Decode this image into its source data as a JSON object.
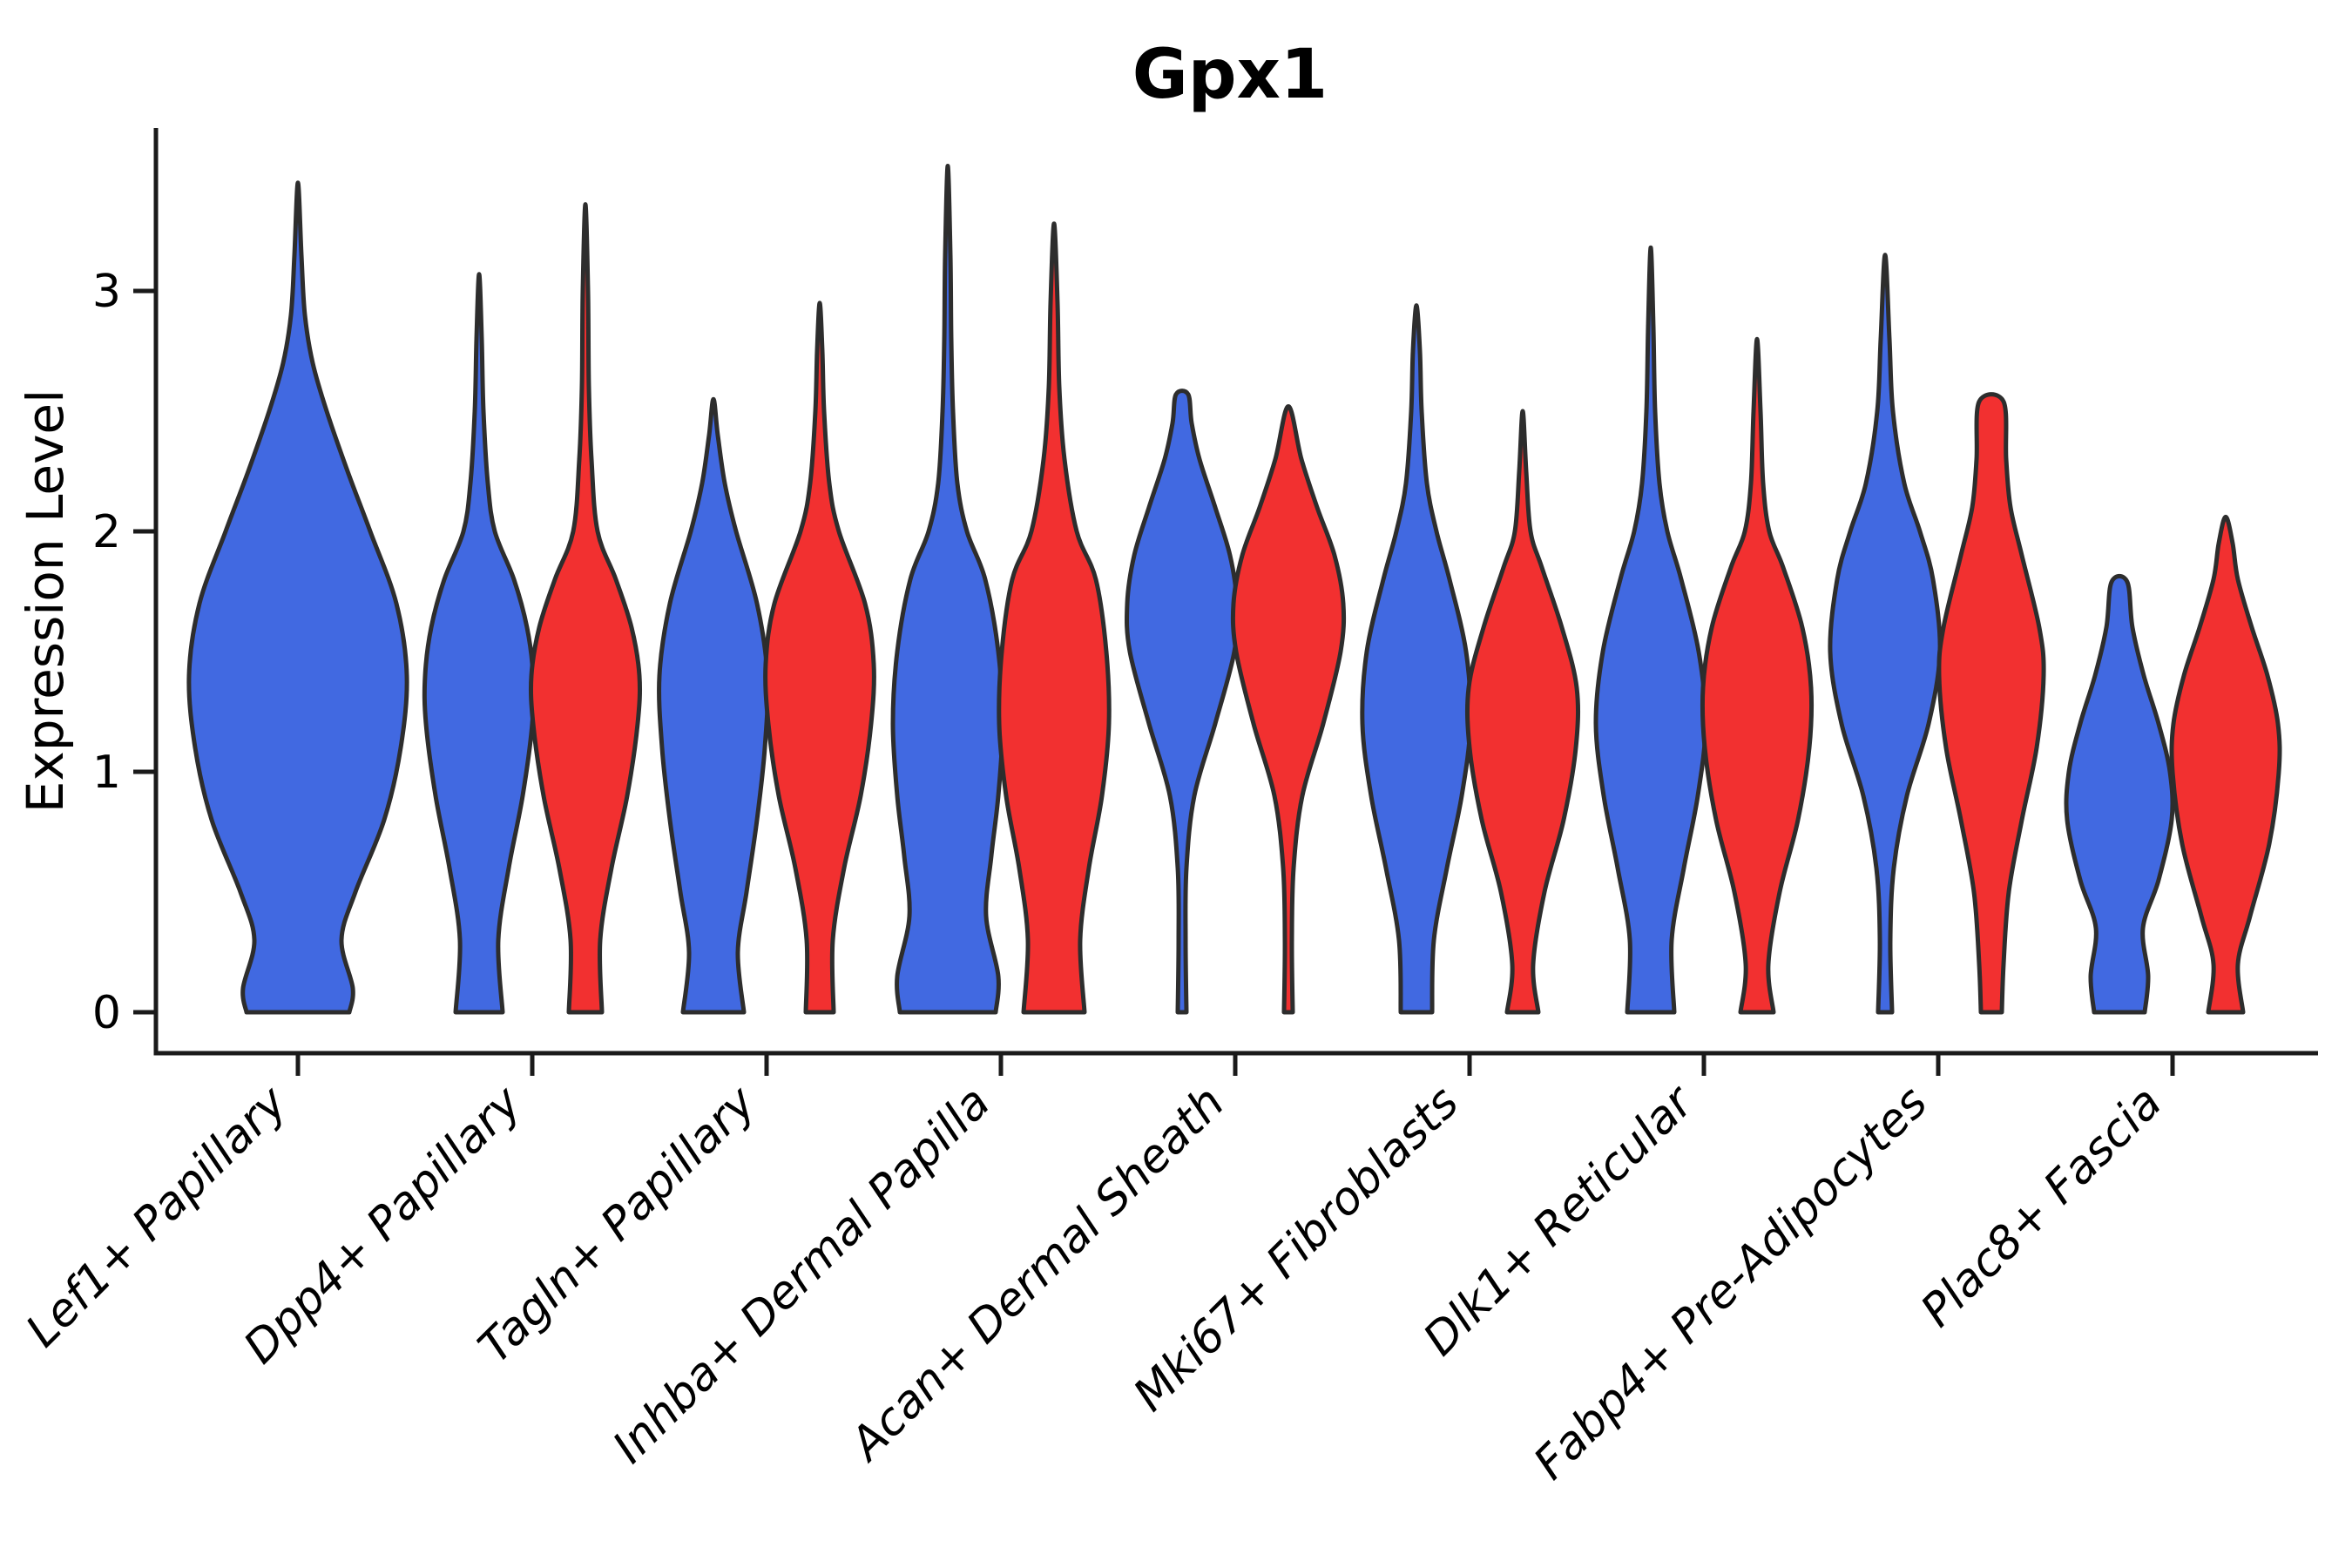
{
  "chart_data": {
    "type": "violin",
    "title": "Gpx1",
    "ylabel": "Expression Level",
    "xlabel": "",
    "grid": false,
    "legend": "none",
    "ylim": [
      -0.17,
      3.67
    ],
    "yticks": [
      {
        "value": 0,
        "label": "0"
      },
      {
        "value": 1,
        "label": "1"
      },
      {
        "value": 2,
        "label": "2"
      },
      {
        "value": 3,
        "label": "3"
      }
    ],
    "x_tick_rotation_deg": 45,
    "categories": [
      "Lef1+ Papillary",
      "Dpp4+ Papillary",
      "Tagln+ Papillary",
      "Inhba+ Dermal Papilla",
      "Acan+ Dermal Sheath",
      "Mki67+ Fibroblasts",
      "Dlk1+ Reticular",
      "Fabp4+ Pre-Adipocytes",
      "Plac8+ Fascia"
    ],
    "groups": [
      {
        "id": "blue",
        "color": "#4169E1"
      },
      {
        "id": "red",
        "color": "#F23030"
      }
    ],
    "edge_color": "#2D2D2D",
    "violins": [
      {
        "category_index": 0,
        "group": "blue",
        "max_expression": 3.45,
        "tip_style": "point",
        "profile": [
          [
            0,
            59
          ],
          [
            0.1,
            63
          ],
          [
            0.3,
            50
          ],
          [
            0.5,
            66
          ],
          [
            0.8,
            99
          ],
          [
            1.1,
            118
          ],
          [
            1.4,
            125
          ],
          [
            1.7,
            113
          ],
          [
            2.0,
            83
          ],
          [
            2.25,
            57
          ],
          [
            2.5,
            33
          ],
          [
            2.7,
            17
          ],
          [
            2.9,
            8
          ],
          [
            3.15,
            4
          ],
          [
            3.45,
            2
          ]
        ]
      },
      {
        "category_index": 1,
        "group": "blue",
        "max_expression": 3.07,
        "tip_style": "point",
        "profile": [
          [
            0,
            27
          ],
          [
            0.3,
            22
          ],
          [
            0.6,
            34
          ],
          [
            0.9,
            50
          ],
          [
            1.2,
            61
          ],
          [
            1.4,
            62
          ],
          [
            1.6,
            55
          ],
          [
            1.8,
            40
          ],
          [
            2.0,
            18
          ],
          [
            2.2,
            10
          ],
          [
            2.5,
            5
          ],
          [
            2.8,
            3
          ],
          [
            3.07,
            1.5
          ]
        ]
      },
      {
        "category_index": 1,
        "group": "red",
        "max_expression": 3.36,
        "tip_style": "point",
        "profile": [
          [
            0,
            19
          ],
          [
            0.3,
            17
          ],
          [
            0.6,
            30
          ],
          [
            0.9,
            48
          ],
          [
            1.2,
            60
          ],
          [
            1.4,
            62
          ],
          [
            1.6,
            53
          ],
          [
            1.8,
            35
          ],
          [
            2.0,
            14
          ],
          [
            2.3,
            7
          ],
          [
            2.6,
            4
          ],
          [
            3.0,
            3
          ],
          [
            3.36,
            1.5
          ]
        ]
      },
      {
        "category_index": 2,
        "group": "blue",
        "max_expression": 2.55,
        "tip_style": "point",
        "profile": [
          [
            0,
            35
          ],
          [
            0.25,
            28
          ],
          [
            0.5,
            38
          ],
          [
            0.8,
            50
          ],
          [
            1.1,
            59
          ],
          [
            1.4,
            62
          ],
          [
            1.7,
            50
          ],
          [
            2.0,
            26
          ],
          [
            2.2,
            13
          ],
          [
            2.4,
            5
          ],
          [
            2.55,
            2
          ]
        ]
      },
      {
        "category_index": 2,
        "group": "red",
        "max_expression": 2.95,
        "tip_style": "point",
        "profile": [
          [
            0,
            16
          ],
          [
            0.3,
            15
          ],
          [
            0.6,
            28
          ],
          [
            0.9,
            47
          ],
          [
            1.2,
            59
          ],
          [
            1.45,
            62
          ],
          [
            1.7,
            52
          ],
          [
            2.0,
            22
          ],
          [
            2.2,
            11
          ],
          [
            2.5,
            5
          ],
          [
            2.75,
            3
          ],
          [
            2.95,
            1.5
          ]
        ]
      },
      {
        "category_index": 3,
        "group": "blue",
        "max_expression": 3.52,
        "tip_style": "point",
        "profile": [
          [
            0,
            55
          ],
          [
            0.15,
            58
          ],
          [
            0.4,
            44
          ],
          [
            0.65,
            50
          ],
          [
            0.9,
            58
          ],
          [
            1.2,
            63
          ],
          [
            1.5,
            58
          ],
          [
            1.8,
            43
          ],
          [
            2.0,
            22
          ],
          [
            2.2,
            11
          ],
          [
            2.5,
            6
          ],
          [
            2.8,
            4
          ],
          [
            3.15,
            3
          ],
          [
            3.52,
            1.5
          ]
        ]
      },
      {
        "category_index": 3,
        "group": "red",
        "max_expression": 3.28,
        "tip_style": "point",
        "profile": [
          [
            0,
            35
          ],
          [
            0.3,
            30
          ],
          [
            0.6,
            40
          ],
          [
            0.9,
            55
          ],
          [
            1.2,
            63
          ],
          [
            1.5,
            60
          ],
          [
            1.8,
            48
          ],
          [
            2.0,
            26
          ],
          [
            2.3,
            12
          ],
          [
            2.6,
            6
          ],
          [
            2.95,
            4
          ],
          [
            3.28,
            1.5
          ]
        ]
      },
      {
        "category_index": 4,
        "group": "blue",
        "max_expression": 2.57,
        "tip_style": "blunt",
        "profile": [
          [
            0,
            5
          ],
          [
            0.3,
            4
          ],
          [
            0.6,
            5
          ],
          [
            0.9,
            14
          ],
          [
            1.2,
            38
          ],
          [
            1.5,
            60
          ],
          [
            1.7,
            63
          ],
          [
            1.9,
            55
          ],
          [
            2.1,
            38
          ],
          [
            2.3,
            20
          ],
          [
            2.45,
            11
          ],
          [
            2.57,
            7
          ]
        ]
      },
      {
        "category_index": 4,
        "group": "red",
        "max_expression": 2.52,
        "tip_style": "point",
        "profile": [
          [
            0,
            5
          ],
          [
            0.3,
            4
          ],
          [
            0.6,
            6
          ],
          [
            0.9,
            16
          ],
          [
            1.2,
            40
          ],
          [
            1.5,
            60
          ],
          [
            1.7,
            63
          ],
          [
            1.9,
            53
          ],
          [
            2.1,
            33
          ],
          [
            2.3,
            15
          ],
          [
            2.52,
            2
          ]
        ]
      },
      {
        "category_index": 5,
        "group": "blue",
        "max_expression": 2.94,
        "tip_style": "point",
        "profile": [
          [
            0,
            18
          ],
          [
            0.3,
            20
          ],
          [
            0.6,
            35
          ],
          [
            0.9,
            52
          ],
          [
            1.2,
            62
          ],
          [
            1.5,
            57
          ],
          [
            1.8,
            38
          ],
          [
            2.0,
            23
          ],
          [
            2.2,
            12
          ],
          [
            2.5,
            6
          ],
          [
            2.75,
            4
          ],
          [
            2.94,
            1.5
          ]
        ]
      },
      {
        "category_index": 5,
        "group": "red",
        "max_expression": 2.5,
        "tip_style": "point",
        "profile": [
          [
            0,
            18
          ],
          [
            0.2,
            12
          ],
          [
            0.5,
            25
          ],
          [
            0.8,
            47
          ],
          [
            1.1,
            61
          ],
          [
            1.35,
            62
          ],
          [
            1.6,
            45
          ],
          [
            1.85,
            22
          ],
          [
            2.0,
            9
          ],
          [
            2.25,
            4
          ],
          [
            2.5,
            1.5
          ]
        ]
      },
      {
        "category_index": 6,
        "group": "blue",
        "max_expression": 3.18,
        "tip_style": "point",
        "profile": [
          [
            0,
            27
          ],
          [
            0.3,
            24
          ],
          [
            0.6,
            38
          ],
          [
            0.9,
            54
          ],
          [
            1.2,
            63
          ],
          [
            1.5,
            55
          ],
          [
            1.8,
            35
          ],
          [
            2.0,
            19
          ],
          [
            2.2,
            10
          ],
          [
            2.5,
            5
          ],
          [
            2.85,
            3
          ],
          [
            3.18,
            1.5
          ]
        ]
      },
      {
        "category_index": 6,
        "group": "red",
        "max_expression": 2.8,
        "tip_style": "point",
        "profile": [
          [
            0,
            19
          ],
          [
            0.2,
            13
          ],
          [
            0.5,
            26
          ],
          [
            0.8,
            47
          ],
          [
            1.1,
            60
          ],
          [
            1.35,
            62
          ],
          [
            1.6,
            52
          ],
          [
            1.85,
            30
          ],
          [
            2.0,
            14
          ],
          [
            2.2,
            7
          ],
          [
            2.5,
            4
          ],
          [
            2.8,
            1.5
          ]
        ]
      },
      {
        "category_index": 7,
        "group": "blue",
        "max_expression": 3.15,
        "tip_style": "point",
        "profile": [
          [
            0,
            8
          ],
          [
            0.3,
            6
          ],
          [
            0.6,
            10
          ],
          [
            0.9,
            25
          ],
          [
            1.2,
            50
          ],
          [
            1.5,
            63
          ],
          [
            1.8,
            55
          ],
          [
            2.0,
            40
          ],
          [
            2.2,
            22
          ],
          [
            2.5,
            9
          ],
          [
            2.8,
            5
          ],
          [
            3.15,
            1.5
          ]
        ]
      },
      {
        "category_index": 7,
        "group": "red",
        "max_expression": 2.54,
        "tip_style": "blunt",
        "profile": [
          [
            0,
            12
          ],
          [
            0.2,
            14
          ],
          [
            0.5,
            20
          ],
          [
            0.8,
            35
          ],
          [
            1.1,
            52
          ],
          [
            1.4,
            60
          ],
          [
            1.6,
            55
          ],
          [
            1.9,
            35
          ],
          [
            2.1,
            22
          ],
          [
            2.3,
            17
          ],
          [
            2.54,
            14
          ]
        ]
      },
      {
        "category_index": 8,
        "group": "blue",
        "max_expression": 1.79,
        "tip_style": "blunt",
        "profile": [
          [
            0,
            29
          ],
          [
            0.15,
            33
          ],
          [
            0.35,
            27
          ],
          [
            0.55,
            45
          ],
          [
            0.8,
            60
          ],
          [
            1.0,
            58
          ],
          [
            1.2,
            45
          ],
          [
            1.4,
            28
          ],
          [
            1.6,
            15
          ],
          [
            1.79,
            9
          ]
        ]
      },
      {
        "category_index": 8,
        "group": "red",
        "max_expression": 2.06,
        "tip_style": "point",
        "profile": [
          [
            0,
            20
          ],
          [
            0.2,
            14
          ],
          [
            0.4,
            28
          ],
          [
            0.7,
            50
          ],
          [
            1.0,
            61
          ],
          [
            1.2,
            60
          ],
          [
            1.4,
            48
          ],
          [
            1.6,
            30
          ],
          [
            1.8,
            14
          ],
          [
            1.95,
            8
          ],
          [
            2.06,
            2
          ]
        ]
      }
    ]
  }
}
